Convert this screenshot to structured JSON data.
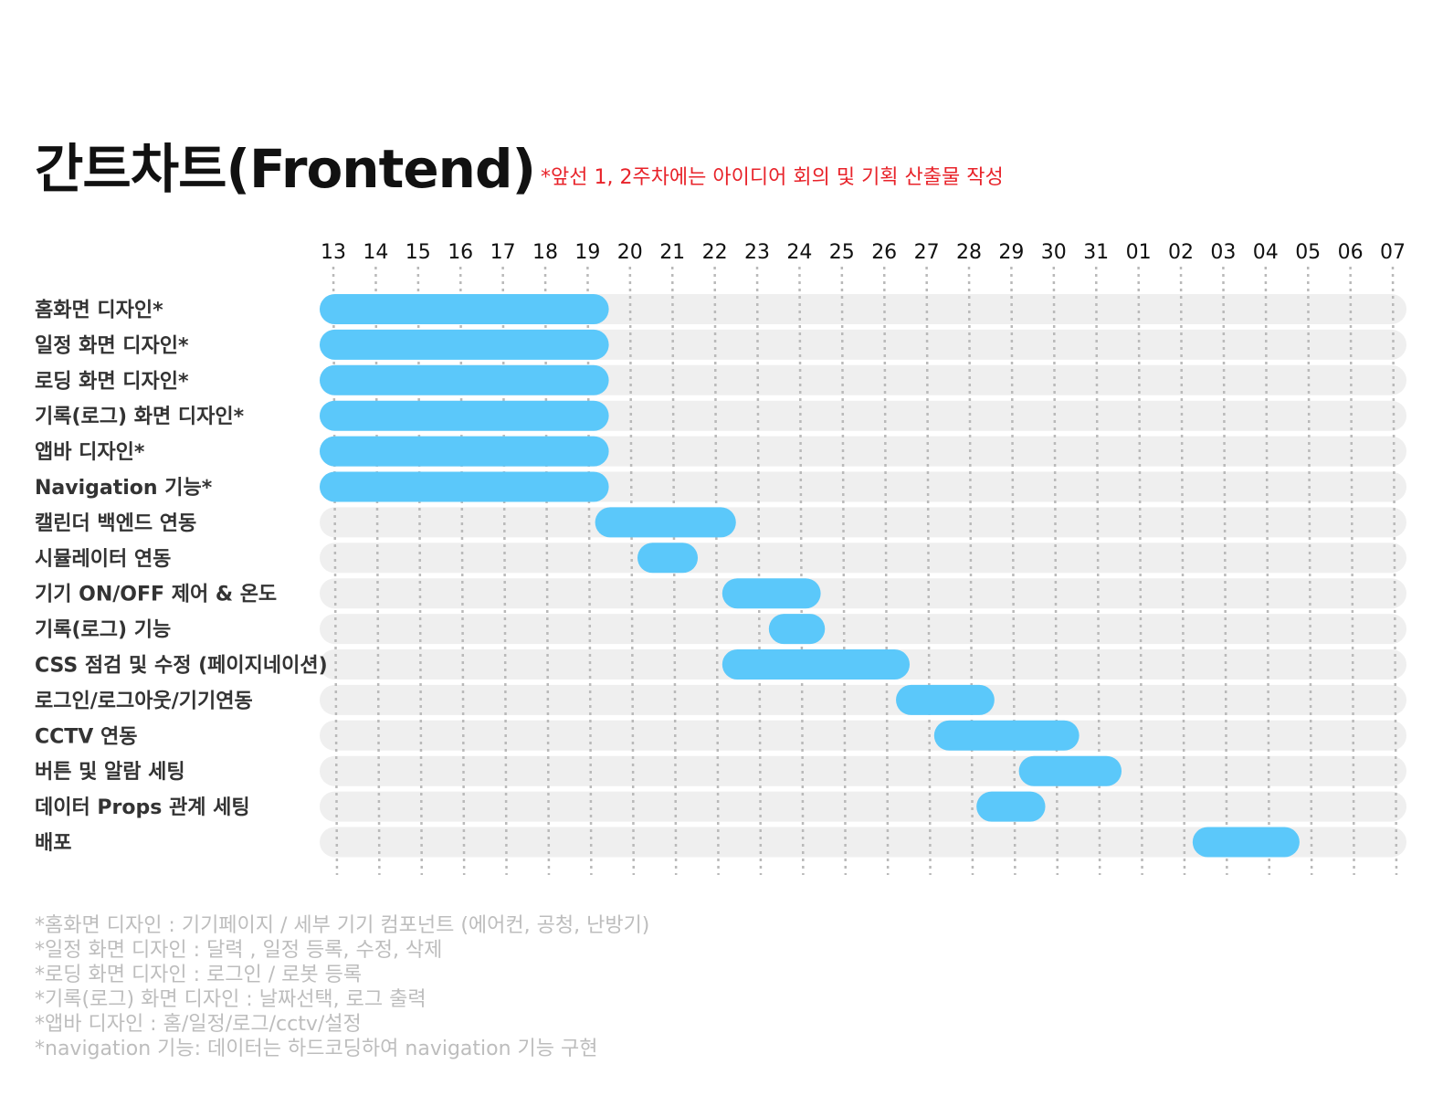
{
  "header": {
    "title": "간트차트(Frontend)",
    "subtitle": "*앞선 1, 2주차에는 아이디어 회의 및 기획 산출물 작성"
  },
  "colors": {
    "bar": "#5bc8fa",
    "track": "#efefef",
    "gridline": "#b9b9b9",
    "subtitle": "#e8232a",
    "notes": "#bdbdbd"
  },
  "chart_data": {
    "type": "gantt",
    "days": [
      "13",
      "14",
      "15",
      "16",
      "17",
      "18",
      "19",
      "20",
      "21",
      "22",
      "23",
      "24",
      "25",
      "26",
      "27",
      "28",
      "29",
      "30",
      "31",
      "01",
      "02",
      "03",
      "04",
      "05",
      "06",
      "07"
    ],
    "tasks": [
      {
        "name": "홈화면 디자인*",
        "start": 0,
        "end": 6.5
      },
      {
        "name": "일정 화면 디자인*",
        "start": 0,
        "end": 6.5
      },
      {
        "name": "로딩 화면 디자인*",
        "start": 0,
        "end": 6.5
      },
      {
        "name": "기록(로그) 화면 디자인*",
        "start": 0,
        "end": 6.5
      },
      {
        "name": "앱바 디자인*",
        "start": 0,
        "end": 6.5
      },
      {
        "name": "Navigation 기능*",
        "start": 0,
        "end": 6.5
      },
      {
        "name": "캘린더 백엔드 연동",
        "start": 6.5,
        "end": 9.5
      },
      {
        "name": "시뮬레이터 연동",
        "start": 7.5,
        "end": 8.6
      },
      {
        "name": "기기 ON/OFF 제어 & 온도",
        "start": 9.5,
        "end": 11.5
      },
      {
        "name": "기록(로그) 기능",
        "start": 10.6,
        "end": 11.6
      },
      {
        "name": "CSS 점검 및 수정 (페이지네이션)",
        "start": 9.5,
        "end": 13.6
      },
      {
        "name": "로그인/로그아웃/기기연동",
        "start": 13.6,
        "end": 15.6
      },
      {
        "name": "CCTV 연동",
        "start": 14.5,
        "end": 17.6
      },
      {
        "name": "버튼 및 알람 세팅",
        "start": 16.5,
        "end": 18.6
      },
      {
        "name": "데이터 Props 관계 세팅",
        "start": 15.5,
        "end": 16.8
      },
      {
        "name": "배포",
        "start": 20.6,
        "end": 22.8
      }
    ]
  },
  "notes": [
    "*홈화면 디자인 : 기기페이지 / 세부 기기 컴포넌트 (에어컨, 공청, 난방기)",
    "*일정 화면 디자인 : 달력 , 일정 등록, 수정, 삭제",
    "*로딩 화면 디자인 : 로그인 / 로봇 등록",
    "*기록(로그) 화면 디자인 : 날짜선택, 로그 출력",
    "*앱바 디자인 : 홈/일정/로그/cctv/설정",
    "*navigation 기능: 데이터는 하드코딩하여 navigation 기능 구현"
  ]
}
